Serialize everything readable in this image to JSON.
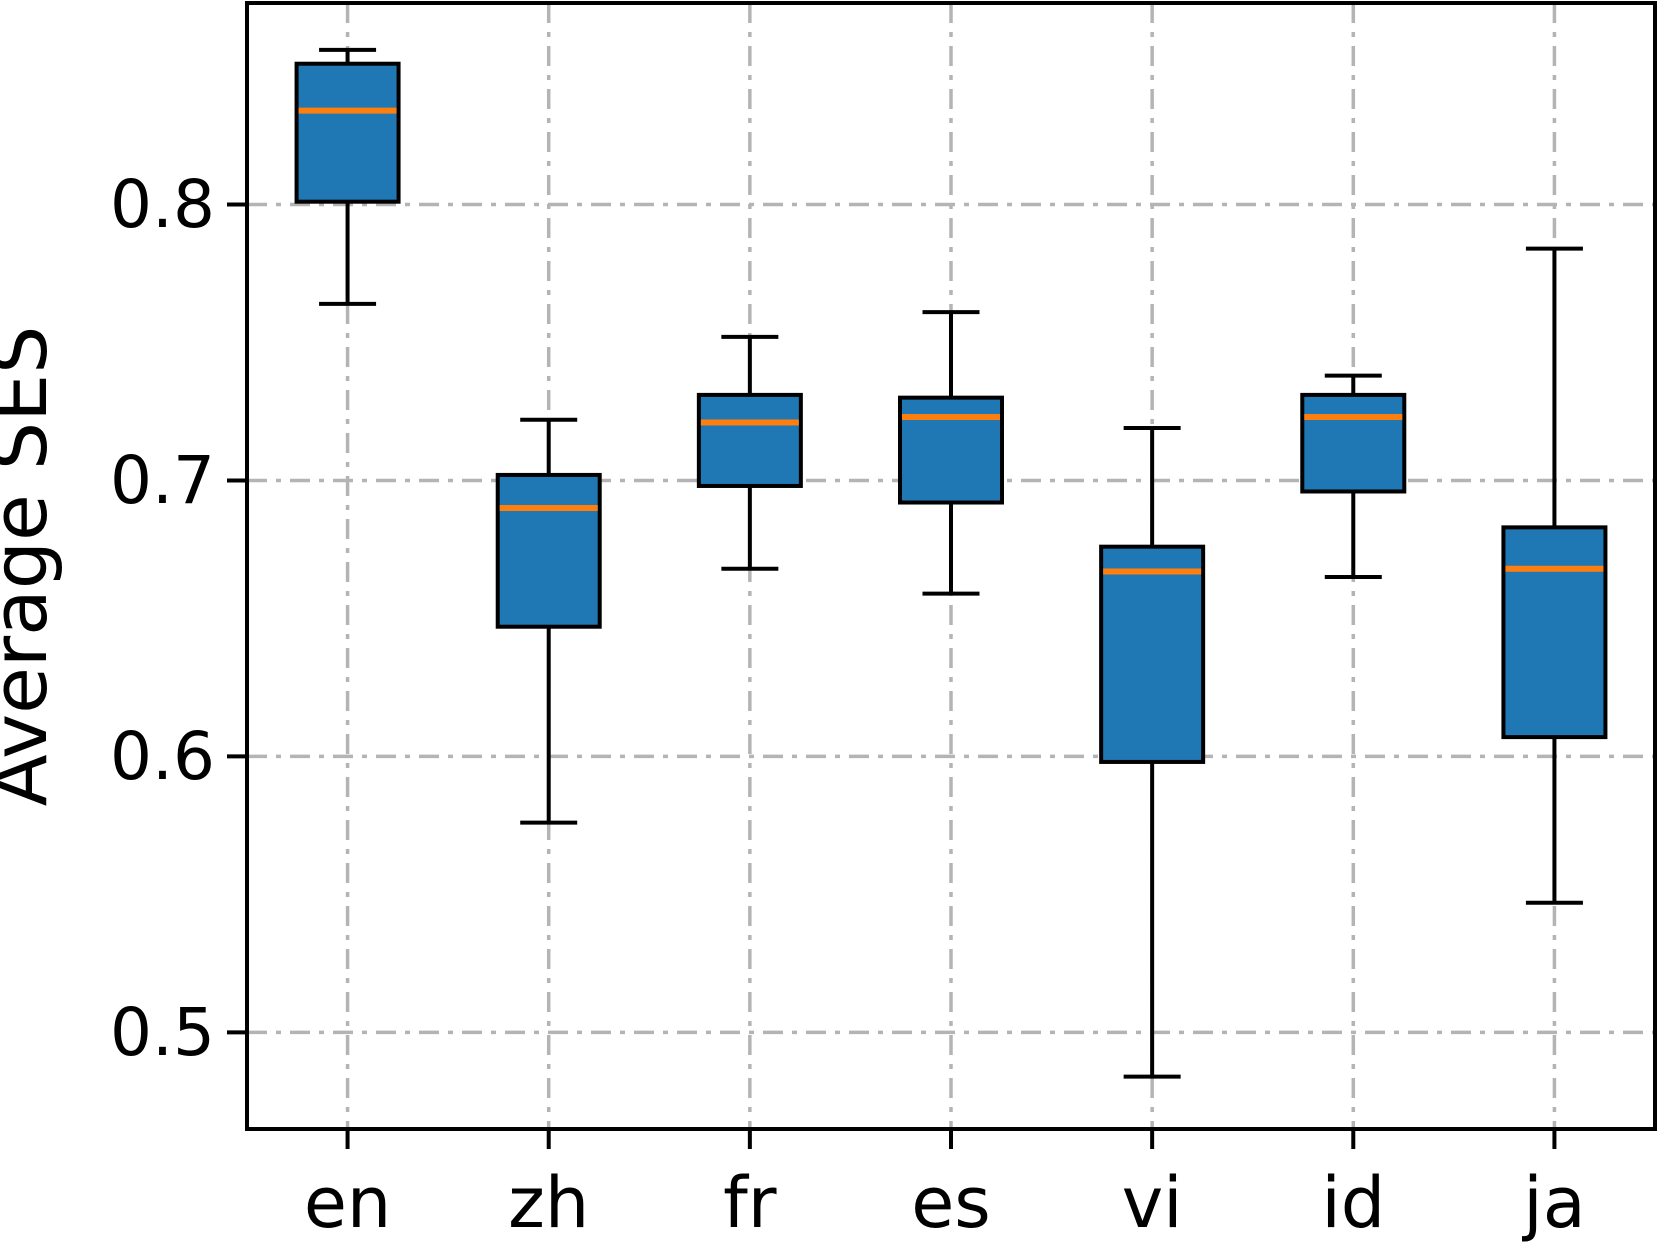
{
  "chart_data": {
    "type": "box",
    "title": "",
    "xlabel": "",
    "ylabel": "Average SES",
    "categories": [
      "en",
      "zh",
      "fr",
      "es",
      "vi",
      "id",
      "ja"
    ],
    "boxes": [
      {
        "label": "en",
        "whislo": 0.764,
        "q1": 0.801,
        "med": 0.834,
        "q3": 0.851,
        "whishi": 0.856
      },
      {
        "label": "zh",
        "whislo": 0.576,
        "q1": 0.647,
        "med": 0.69,
        "q3": 0.702,
        "whishi": 0.722
      },
      {
        "label": "fr",
        "whislo": 0.668,
        "q1": 0.698,
        "med": 0.721,
        "q3": 0.731,
        "whishi": 0.752
      },
      {
        "label": "es",
        "whislo": 0.659,
        "q1": 0.692,
        "med": 0.723,
        "q3": 0.73,
        "whishi": 0.761
      },
      {
        "label": "vi",
        "whislo": 0.484,
        "q1": 0.598,
        "med": 0.667,
        "q3": 0.676,
        "whishi": 0.719
      },
      {
        "label": "id",
        "whislo": 0.665,
        "q1": 0.696,
        "med": 0.723,
        "q3": 0.731,
        "whishi": 0.738
      },
      {
        "label": "ja",
        "whislo": 0.547,
        "q1": 0.607,
        "med": 0.668,
        "q3": 0.683,
        "whishi": 0.784
      }
    ],
    "yticks": [
      "0.5",
      "0.6",
      "0.7",
      "0.8"
    ],
    "ytick_values": [
      0.5,
      0.6,
      0.7,
      0.8
    ],
    "ylim": [
      0.465,
      0.873
    ],
    "grid": "dash-dot, both axes, below data",
    "legend_position": "none",
    "colors": {
      "box_fill": "#1f77b4",
      "box_edge": "#000000",
      "median": "#ff7f0e",
      "whisker": "#000000",
      "grid": "#b4b4b4",
      "spine": "#000000",
      "text": "#000000",
      "background": "#ffffff"
    }
  }
}
